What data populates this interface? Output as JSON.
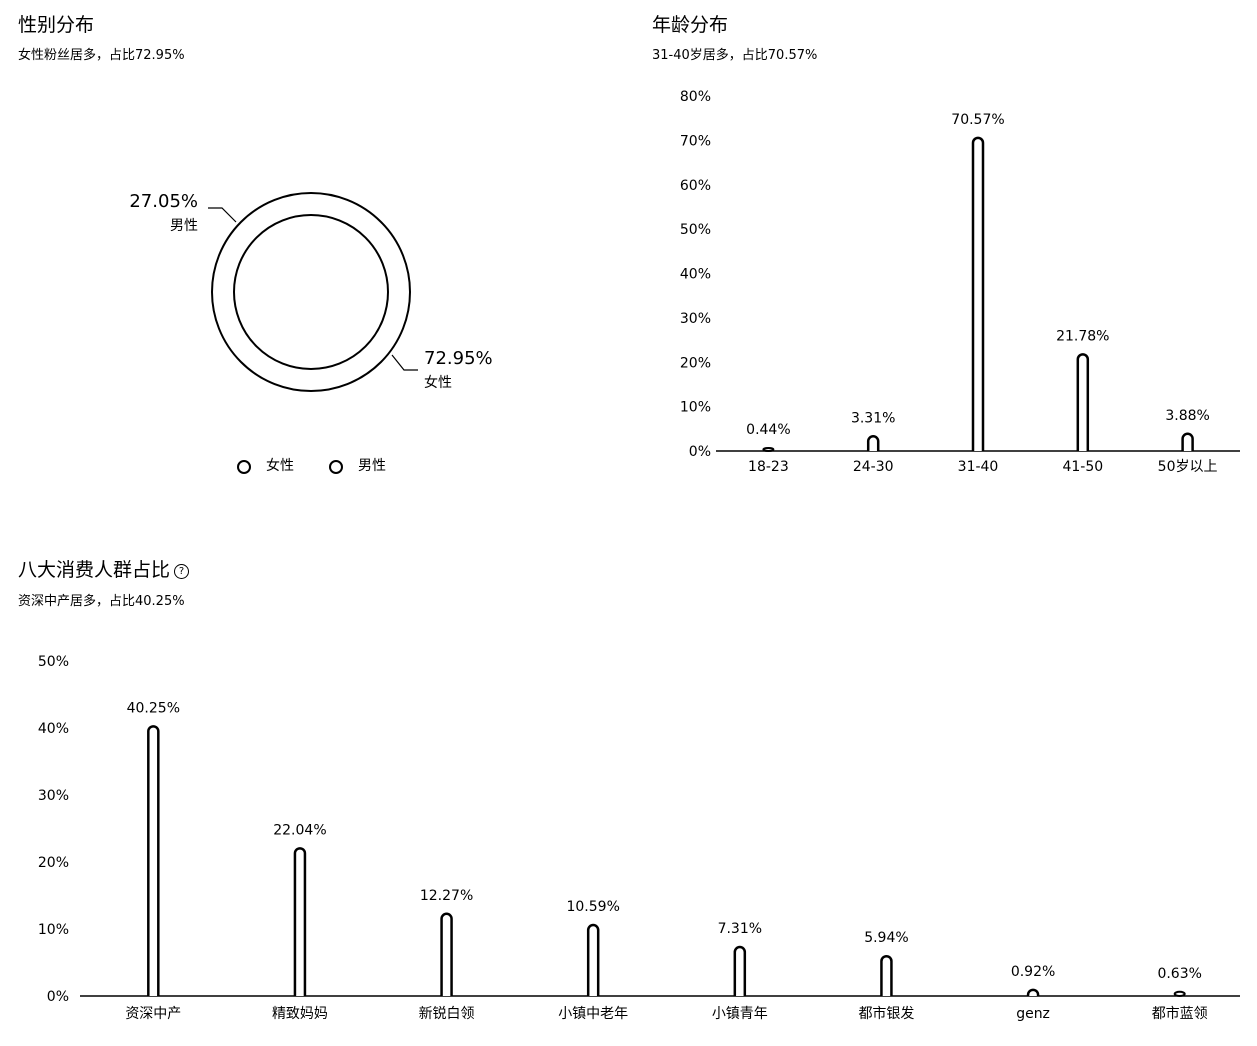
{
  "gender": {
    "title": "性别分布",
    "subtitle": "女性粉丝居多，占比72.95%",
    "chart_data": {
      "type": "pie",
      "donut": true,
      "slices": [
        {
          "name": "女性",
          "value": 72.95,
          "label": "72.95%"
        },
        {
          "name": "男性",
          "value": 27.05,
          "label": "27.05%"
        }
      ],
      "legend": [
        "女性",
        "男性"
      ],
      "legend_position": "bottom"
    }
  },
  "age": {
    "title": "年龄分布",
    "subtitle": "31-40岁居多，占比70.57%",
    "chart_data": {
      "type": "bar",
      "categories": [
        "18-23",
        "24-30",
        "31-40",
        "41-50",
        "50岁以上"
      ],
      "values": [
        0.44,
        3.31,
        70.57,
        21.78,
        3.88
      ],
      "value_labels": [
        "0.44%",
        "3.31%",
        "70.57%",
        "21.78%",
        "3.88%"
      ],
      "ylim": [
        0,
        80
      ],
      "yticks": [
        "0%",
        "10%",
        "20%",
        "30%",
        "40%",
        "50%",
        "60%",
        "70%",
        "80%"
      ],
      "grid": false
    }
  },
  "consumer": {
    "title": "八大消费人群占比",
    "help_icon": "question-circle-icon",
    "subtitle": "资深中产居多，占比40.25%",
    "chart_data": {
      "type": "bar",
      "categories": [
        "资深中产",
        "精致妈妈",
        "新锐白领",
        "小镇中老年",
        "小镇青年",
        "都市银发",
        "genz",
        "都市蓝领"
      ],
      "values": [
        40.25,
        22.04,
        12.27,
        10.59,
        7.31,
        5.94,
        0.92,
        0.63
      ],
      "value_labels": [
        "40.25%",
        "22.04%",
        "12.27%",
        "10.59%",
        "7.31%",
        "5.94%",
        "0.92%",
        "0.63%"
      ],
      "ylim": [
        0,
        50
      ],
      "yticks": [
        "0%",
        "10%",
        "20%",
        "30%",
        "40%",
        "50%"
      ],
      "grid": false
    }
  }
}
